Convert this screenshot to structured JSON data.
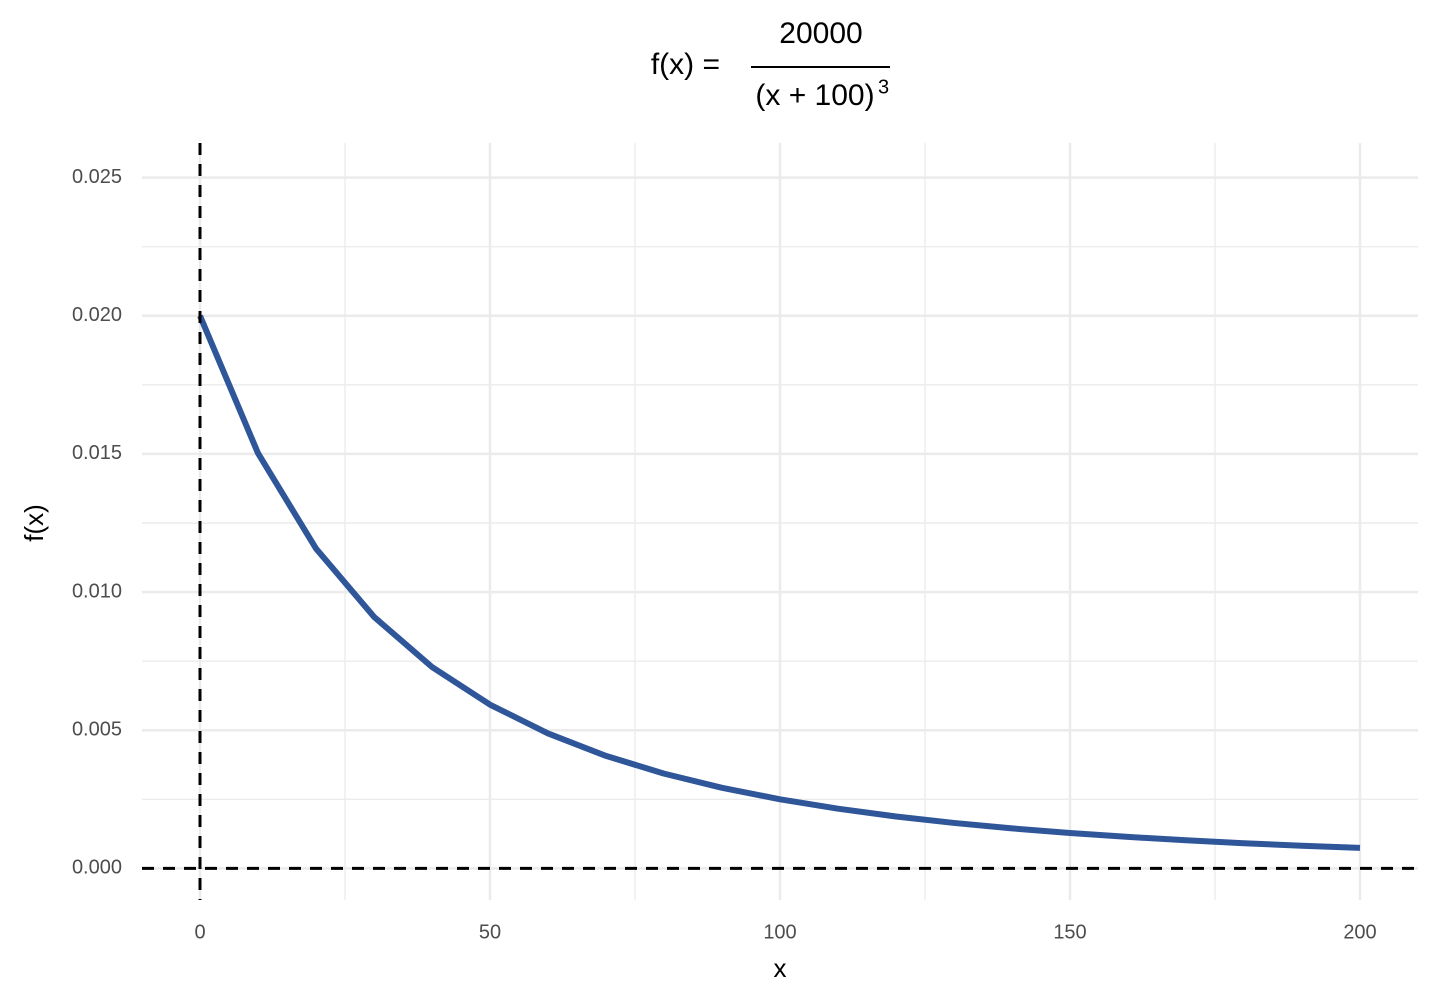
{
  "chart_data": {
    "type": "line",
    "title": {
      "lhs": "f(x) =",
      "numerator": "20000",
      "denominator": "(x + 100)",
      "exponent": "3"
    },
    "x_label": "x",
    "y_label": "f(x)",
    "x": [
      0,
      10,
      20,
      30,
      40,
      50,
      60,
      70,
      80,
      90,
      100,
      110,
      120,
      130,
      140,
      150,
      160,
      170,
      180,
      190,
      200
    ],
    "series": [
      {
        "color": "#30569a",
        "values": [
          0.02,
          0.015026,
          0.011574,
          0.009103,
          0.007289,
          0.005926,
          0.004883,
          0.004071,
          0.003429,
          0.002916,
          0.0025,
          0.00216,
          0.001878,
          0.001644,
          0.001447,
          0.00128,
          0.001138,
          0.001016,
          0.000911,
          0.00082,
          0.000741
        ]
      }
    ],
    "xlim": [
      -10,
      210
    ],
    "ylim": [
      -0.001,
      0.026
    ],
    "xticks": [
      0,
      50,
      100,
      150,
      200
    ],
    "yticks": [
      {
        "value": 0,
        "label": "0.000"
      },
      {
        "value": 0.005,
        "label": "0.005"
      },
      {
        "value": 0.01,
        "label": "0.010"
      },
      {
        "value": 0.015,
        "label": "0.015"
      },
      {
        "value": 0.02,
        "label": "0.020"
      },
      {
        "value": 0.025,
        "label": "0.025"
      }
    ],
    "vlines": [
      0
    ],
    "hlines": [
      0
    ],
    "grid": true
  }
}
